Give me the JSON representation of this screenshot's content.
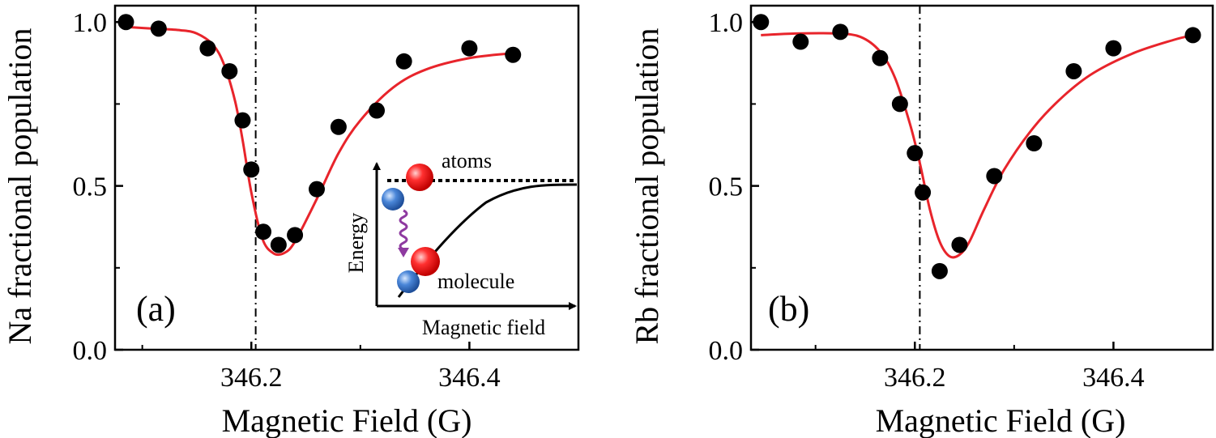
{
  "chart_data": [
    {
      "type": "scatter",
      "panel_label": "(a)",
      "xlabel": "Magnetic Field (G)",
      "ylabel": "Na fractional population",
      "xlim": [
        346.075,
        346.5
      ],
      "ylim": [
        0.0,
        1.05
      ],
      "x_ticks": [
        "346.2",
        "346.4"
      ],
      "y_ticks": [
        "0.0",
        "0.5",
        "1.0"
      ],
      "resonance_line_x": 346.204,
      "series": [
        {
          "kind": "points",
          "color": "#000000",
          "x": [
            346.085,
            346.115,
            346.16,
            346.18,
            346.192,
            346.2,
            346.211,
            346.225,
            346.24,
            346.26,
            346.28,
            346.315,
            346.34,
            346.4,
            346.44
          ],
          "y": [
            1.0,
            0.98,
            0.92,
            0.85,
            0.7,
            0.55,
            0.36,
            0.32,
            0.35,
            0.49,
            0.68,
            0.73,
            0.88,
            0.92,
            0.9
          ]
        },
        {
          "kind": "fit",
          "color": "#e8242b",
          "x": [
            346.085,
            346.11,
            346.135,
            346.15,
            346.165,
            346.175,
            346.185,
            346.192,
            346.2,
            346.21,
            346.22,
            346.23,
            346.24,
            346.26,
            346.28,
            346.3,
            346.33,
            346.36,
            346.4,
            346.44
          ],
          "y": [
            0.985,
            0.98,
            0.975,
            0.965,
            0.93,
            0.87,
            0.76,
            0.64,
            0.48,
            0.34,
            0.295,
            0.295,
            0.33,
            0.46,
            0.6,
            0.7,
            0.8,
            0.855,
            0.89,
            0.905
          ]
        }
      ],
      "inset": {
        "xlabel": "Magnetic field",
        "ylabel": "Energy",
        "atoms_label": "atoms",
        "molecule_label": "molecule"
      }
    },
    {
      "type": "scatter",
      "panel_label": "(b)",
      "xlabel": "Magnetic Field (G)",
      "ylabel": "Rb fractional population",
      "xlim": [
        346.035,
        346.5
      ],
      "ylim": [
        0.0,
        1.05
      ],
      "x_ticks": [
        "346.2",
        "346.4"
      ],
      "y_ticks": [
        "0.0",
        "0.5",
        "1.0"
      ],
      "resonance_line_x": 346.205,
      "series": [
        {
          "kind": "points",
          "color": "#000000",
          "x": [
            346.045,
            346.085,
            346.125,
            346.165,
            346.185,
            346.2,
            346.208,
            346.225,
            346.245,
            346.28,
            346.32,
            346.36,
            346.4,
            346.48
          ],
          "y": [
            1.0,
            0.94,
            0.97,
            0.89,
            0.75,
            0.6,
            0.48,
            0.24,
            0.32,
            0.53,
            0.63,
            0.85,
            0.92,
            0.96
          ]
        },
        {
          "kind": "fit",
          "color": "#e8242b",
          "x": [
            346.045,
            346.08,
            346.12,
            346.145,
            346.165,
            346.18,
            346.195,
            346.205,
            346.215,
            346.225,
            346.235,
            346.245,
            346.255,
            346.27,
            346.29,
            346.32,
            346.35,
            346.38,
            346.42,
            346.46,
            346.48
          ],
          "y": [
            0.96,
            0.965,
            0.965,
            0.955,
            0.91,
            0.83,
            0.69,
            0.57,
            0.43,
            0.33,
            0.285,
            0.29,
            0.33,
            0.43,
            0.55,
            0.68,
            0.775,
            0.845,
            0.905,
            0.945,
            0.96
          ]
        }
      ]
    }
  ]
}
